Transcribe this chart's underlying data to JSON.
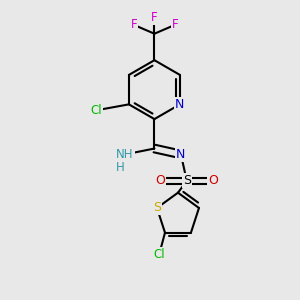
{
  "background_color": "#e8e8e8",
  "figsize": [
    3.0,
    3.0
  ],
  "dpi": 100,
  "colors": {
    "bond": "#000000",
    "N": "#0000cc",
    "Cl": "#00bb00",
    "F": "#cc00cc",
    "O": "#cc0000",
    "S_sulf": "#000000",
    "S_th": "#ccaa00",
    "NH": "#3399aa",
    "H": "#3399aa"
  }
}
